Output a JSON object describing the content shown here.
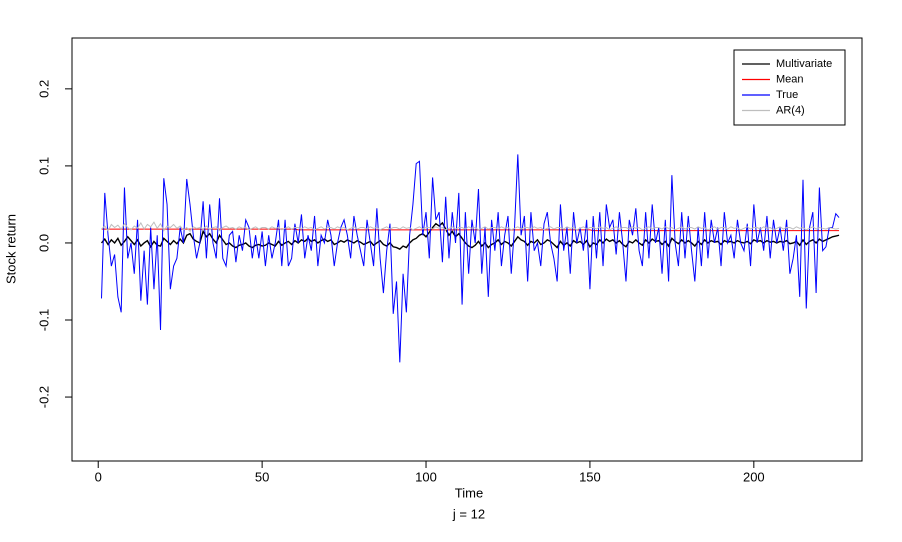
{
  "chart_data": {
    "type": "line",
    "xlabel": "Time",
    "subtitle": "j = 12",
    "ylabel": "Stock return",
    "xlim": [
      -8,
      233
    ],
    "ylim": [
      -0.283,
      0.266
    ],
    "xticks": [
      0,
      50,
      100,
      150,
      200
    ],
    "yticks": [
      -0.2,
      -0.1,
      {
        "value": 0,
        "label": "0.0"
      },
      0.1,
      0.2
    ],
    "legend": "topright",
    "x": [
      1,
      2,
      3,
      4,
      5,
      6,
      7,
      8,
      9,
      10,
      11,
      12,
      13,
      14,
      15,
      16,
      17,
      18,
      19,
      20,
      21,
      22,
      23,
      24,
      25,
      26,
      27,
      28,
      29,
      30,
      31,
      32,
      33,
      34,
      35,
      36,
      37,
      38,
      39,
      40,
      41,
      42,
      43,
      44,
      45,
      46,
      47,
      48,
      49,
      50,
      51,
      52,
      53,
      54,
      55,
      56,
      57,
      58,
      59,
      60,
      61,
      62,
      63,
      64,
      65,
      66,
      67,
      68,
      69,
      70,
      71,
      72,
      73,
      74,
      75,
      76,
      77,
      78,
      79,
      80,
      81,
      82,
      83,
      84,
      85,
      86,
      87,
      88,
      89,
      90,
      91,
      92,
      93,
      94,
      95,
      96,
      97,
      98,
      99,
      100,
      101,
      102,
      103,
      104,
      105,
      106,
      107,
      108,
      109,
      110,
      111,
      112,
      113,
      114,
      115,
      116,
      117,
      118,
      119,
      120,
      121,
      122,
      123,
      124,
      125,
      126,
      127,
      128,
      129,
      130,
      131,
      132,
      133,
      134,
      135,
      136,
      137,
      138,
      139,
      140,
      141,
      142,
      143,
      144,
      145,
      146,
      147,
      148,
      149,
      150,
      151,
      152,
      153,
      154,
      155,
      156,
      157,
      158,
      159,
      160,
      161,
      162,
      163,
      164,
      165,
      166,
      167,
      168,
      169,
      170,
      171,
      172,
      173,
      174,
      175,
      176,
      177,
      178,
      179,
      180,
      181,
      182,
      183,
      184,
      185,
      186,
      187,
      188,
      189,
      190,
      191,
      192,
      193,
      194,
      195,
      196,
      197,
      198,
      199,
      200,
      201,
      202,
      203,
      204,
      205,
      206,
      207,
      208,
      209,
      210,
      211,
      212,
      213,
      214,
      215,
      216,
      217,
      218,
      219,
      220,
      221,
      222,
      223,
      224,
      225,
      226
    ],
    "series": [
      {
        "name": "Multivariate",
        "color": "#000000",
        "values": [
          0.0,
          0.005,
          -0.002,
          0.004,
          0.0,
          0.006,
          -0.003,
          0.002,
          0.008,
          0.003,
          -0.002,
          0.004,
          -0.004,
          0.0,
          0.003,
          -0.005,
          0.002,
          -0.003,
          -0.004,
          0.006,
          0.002,
          -0.002,
          0.003,
          -0.001,
          0.005,
          0.0,
          0.01,
          0.012,
          0.005,
          0.002,
          0.0,
          0.015,
          0.008,
          0.012,
          0.005,
          0.0,
          0.01,
          0.004,
          -0.002,
          0.0,
          -0.004,
          -0.006,
          -0.003,
          -0.002,
          0.0,
          -0.004,
          -0.006,
          -0.003,
          -0.002,
          -0.004,
          -0.003,
          0.0,
          -0.002,
          -0.004,
          0.002,
          -0.003,
          0.0,
          0.002,
          -0.002,
          0.003,
          0.0,
          0.004,
          0.002,
          0.006,
          0.002,
          0.004,
          0.0,
          0.003,
          0.005,
          0.002,
          0.004,
          -0.002,
          0.0,
          0.003,
          0.001,
          0.004,
          0.002,
          0.0,
          0.003,
          0.001,
          -0.002,
          0.0,
          0.002,
          -0.003,
          0.0,
          0.003,
          -0.002,
          -0.004,
          0.0,
          -0.005,
          -0.006,
          -0.008,
          -0.004,
          -0.006,
          0.0,
          0.004,
          0.006,
          0.01,
          0.012,
          0.008,
          0.014,
          0.02,
          0.025,
          0.022,
          0.026,
          0.018,
          0.01,
          0.015,
          0.008,
          0.012,
          0.006,
          0.0,
          -0.004,
          -0.006,
          -0.003,
          0.002,
          -0.004,
          0.0,
          -0.006,
          -0.002,
          0.0,
          0.004,
          -0.002,
          0.002,
          0.0,
          -0.004,
          0.002,
          0.008,
          0.004,
          0.002,
          -0.003,
          0.002,
          0.0,
          0.004,
          -0.002,
          0.0,
          0.004,
          0.002,
          -0.002,
          -0.006,
          0.002,
          -0.003,
          0.0,
          -0.004,
          0.003,
          0.0,
          0.002,
          -0.002,
          0.003,
          -0.005,
          0.0,
          -0.002,
          0.004,
          0.0,
          0.005,
          0.002,
          0.004,
          0.0,
          0.003,
          -0.002,
          -0.005,
          0.002,
          0.0,
          0.004,
          0.0,
          -0.003,
          0.004,
          0.0,
          0.005,
          0.002,
          0.003,
          -0.002,
          0.002,
          -0.004,
          0.006,
          0.002,
          -0.001,
          0.004,
          0.0,
          0.003,
          0.0,
          -0.004,
          0.002,
          -0.002,
          0.004,
          0.0,
          0.003,
          0.001,
          0.002,
          -0.002,
          0.003,
          0.001,
          0.002,
          0.0,
          0.003,
          0.001,
          0.0,
          0.002,
          -0.001,
          0.004,
          0.002,
          0.003,
          0.0,
          0.003,
          0.001,
          0.002,
          0.0,
          0.002,
          0.001,
          0.003,
          -0.001,
          0.0,
          0.002,
          -0.003,
          0.004,
          -0.002,
          0.002,
          0.004,
          0.0,
          0.005,
          0.002,
          0.004,
          0.006,
          0.008,
          0.009,
          0.01
        ]
      },
      {
        "name": "Mean",
        "color": "#ff0000",
        "values": [
          0.018,
          0.018,
          0.018,
          0.018,
          0.018,
          0.018,
          0.018,
          0.018,
          0.018,
          0.018,
          0.018,
          0.018,
          0.018,
          0.018,
          0.018,
          0.018,
          0.018,
          0.018,
          0.018,
          0.018,
          0.018,
          0.018,
          0.018,
          0.018,
          0.018,
          0.018,
          0.018,
          0.018,
          0.018,
          0.018,
          0.018,
          0.018,
          0.018,
          0.018,
          0.018,
          0.018,
          0.018,
          0.018,
          0.018,
          0.018,
          0.018,
          0.018,
          0.018,
          0.018,
          0.018,
          0.018,
          0.018,
          0.018,
          0.018,
          0.018,
          0.018,
          0.018,
          0.018,
          0.018,
          0.018,
          0.018,
          0.018,
          0.018,
          0.018,
          0.018,
          0.017,
          0.017,
          0.017,
          0.017,
          0.017,
          0.017,
          0.017,
          0.017,
          0.017,
          0.017,
          0.017,
          0.017,
          0.017,
          0.017,
          0.017,
          0.017,
          0.017,
          0.017,
          0.017,
          0.017,
          0.017,
          0.017,
          0.017,
          0.017,
          0.017,
          0.017,
          0.017,
          0.017,
          0.017,
          0.017,
          0.017,
          0.017,
          0.017,
          0.017,
          0.017,
          0.017,
          0.017,
          0.017,
          0.017,
          0.017,
          0.017,
          0.017,
          0.017,
          0.017,
          0.017,
          0.017,
          0.017,
          0.017,
          0.017,
          0.017,
          0.017,
          0.017,
          0.017,
          0.017,
          0.017,
          0.017,
          0.017,
          0.017,
          0.017,
          0.017,
          0.017,
          0.017,
          0.017,
          0.017,
          0.017,
          0.017,
          0.017,
          0.017,
          0.017,
          0.017,
          0.017,
          0.017,
          0.017,
          0.017,
          0.017,
          0.017,
          0.017,
          0.017,
          0.017,
          0.017,
          0.017,
          0.017,
          0.017,
          0.017,
          0.017,
          0.017,
          0.017,
          0.017,
          0.017,
          0.017,
          0.016,
          0.016,
          0.016,
          0.016,
          0.016,
          0.016,
          0.016,
          0.016,
          0.016,
          0.016,
          0.016,
          0.016,
          0.016,
          0.016,
          0.016,
          0.016,
          0.016,
          0.016,
          0.016,
          0.016,
          0.016,
          0.016,
          0.016,
          0.016,
          0.016,
          0.016,
          0.016,
          0.016,
          0.016,
          0.016,
          0.016,
          0.016,
          0.016,
          0.016,
          0.016,
          0.016,
          0.016,
          0.016,
          0.016,
          0.016,
          0.016,
          0.016,
          0.016,
          0.016,
          0.016,
          0.016,
          0.016,
          0.016,
          0.016,
          0.016,
          0.016,
          0.016,
          0.016,
          0.016,
          0.016,
          0.016,
          0.016,
          0.016,
          0.016,
          0.016,
          0.016,
          0.016,
          0.016,
          0.016,
          0.016,
          0.016,
          0.016,
          0.016,
          0.016,
          0.016,
          0.016,
          0.016,
          0.016,
          0.016,
          0.016,
          0.016
        ]
      },
      {
        "name": "True",
        "color": "#0000ff",
        "values": [
          -0.072,
          0.065,
          0.01,
          -0.03,
          -0.015,
          -0.07,
          -0.09,
          0.072,
          -0.02,
          0.0,
          -0.04,
          0.03,
          -0.075,
          -0.01,
          -0.08,
          0.02,
          -0.06,
          0.01,
          -0.113,
          0.084,
          0.05,
          -0.06,
          -0.03,
          -0.02,
          0.02,
          0.0,
          0.083,
          0.05,
          0.01,
          -0.02,
          0.0,
          0.054,
          -0.02,
          0.05,
          0.0,
          -0.02,
          0.058,
          -0.02,
          -0.03,
          0.01,
          0.015,
          -0.025,
          0.01,
          -0.01,
          0.03,
          0.02,
          -0.02,
          0.01,
          -0.02,
          0.015,
          -0.03,
          0.01,
          -0.02,
          0.0,
          0.03,
          -0.03,
          0.03,
          -0.03,
          -0.02,
          0.025,
          0.0,
          0.037,
          -0.02,
          0.01,
          -0.01,
          0.035,
          -0.03,
          0.01,
          0.0,
          0.03,
          0.01,
          -0.03,
          0.0,
          0.02,
          0.03,
          0.01,
          -0.02,
          0.035,
          0.01,
          -0.01,
          -0.03,
          0.03,
          0.0,
          -0.03,
          0.045,
          -0.02,
          -0.065,
          -0.01,
          0.025,
          -0.092,
          -0.05,
          -0.155,
          -0.04,
          -0.09,
          0.01,
          0.05,
          0.103,
          0.106,
          0.01,
          0.04,
          -0.02,
          0.085,
          0.03,
          0.04,
          -0.025,
          0.06,
          -0.02,
          0.04,
          0.0,
          0.065,
          -0.08,
          0.04,
          -0.04,
          0.03,
          0.0,
          0.07,
          -0.04,
          0.02,
          -0.07,
          0.03,
          -0.01,
          0.04,
          -0.03,
          0.01,
          0.035,
          -0.04,
          0.02,
          0.115,
          0.01,
          0.035,
          -0.05,
          0.04,
          -0.01,
          0.0,
          -0.03,
          0.025,
          0.04,
          0.0,
          -0.02,
          -0.05,
          0.05,
          -0.01,
          0.02,
          -0.04,
          0.04,
          0.0,
          0.02,
          -0.01,
          0.03,
          -0.06,
          0.035,
          -0.02,
          0.04,
          -0.03,
          0.05,
          0.02,
          0.03,
          -0.015,
          0.04,
          0.0,
          -0.05,
          0.03,
          0.01,
          0.045,
          -0.01,
          -0.03,
          0.04,
          -0.02,
          0.05,
          0.0,
          0.02,
          -0.04,
          0.03,
          -0.05,
          0.088,
          0.0,
          -0.03,
          0.04,
          -0.02,
          0.035,
          -0.01,
          -0.05,
          0.02,
          -0.03,
          0.04,
          -0.02,
          0.03,
          0.0,
          0.02,
          -0.03,
          0.04,
          0.0,
          0.01,
          -0.02,
          0.03,
          0.0,
          -0.01,
          0.025,
          -0.03,
          0.05,
          0.0,
          0.02,
          -0.01,
          0.035,
          -0.02,
          0.03,
          0.0,
          0.02,
          -0.01,
          0.03,
          -0.04,
          -0.02,
          0.01,
          -0.07,
          0.082,
          -0.085,
          0.02,
          0.04,
          -0.065,
          0.072,
          -0.01,
          -0.005,
          0.02,
          0.02,
          0.038,
          0.033
        ]
      },
      {
        "name": "AR(4)",
        "color": "#bebebe",
        "values": [
          0.018,
          0.022,
          0.016,
          0.024,
          0.02,
          0.023,
          0.018,
          0.025,
          0.02,
          0.017,
          0.022,
          0.019,
          0.026,
          0.018,
          0.024,
          0.021,
          0.027,
          0.019,
          0.025,
          0.016,
          0.022,
          0.02,
          0.024,
          0.019,
          0.022,
          0.017,
          0.02,
          0.015,
          0.021,
          0.019,
          0.02,
          0.018,
          0.022,
          0.017,
          0.02,
          0.021,
          0.016,
          0.02,
          0.022,
          0.019,
          0.02,
          0.018,
          0.021,
          0.019,
          0.02,
          0.017,
          0.019,
          0.021,
          0.018,
          0.02,
          0.02,
          0.018,
          0.021,
          0.019,
          0.02,
          0.017,
          0.019,
          0.021,
          0.018,
          0.02,
          0.02,
          0.018,
          0.021,
          0.019,
          0.02,
          0.017,
          0.019,
          0.021,
          0.018,
          0.02,
          0.02,
          0.018,
          0.021,
          0.019,
          0.02,
          0.017,
          0.019,
          0.021,
          0.018,
          0.02,
          0.02,
          0.018,
          0.021,
          0.019,
          0.02,
          0.017,
          0.019,
          0.021,
          0.018,
          0.02,
          0.02,
          0.018,
          0.021,
          0.019,
          0.02,
          0.017,
          0.019,
          0.021,
          0.018,
          0.02,
          0.02,
          0.018,
          0.021,
          0.019,
          0.02,
          0.017,
          0.019,
          0.021,
          0.018,
          0.02,
          0.02,
          0.018,
          0.021,
          0.019,
          0.02,
          0.017,
          0.019,
          0.021,
          0.018,
          0.02,
          0.02,
          0.018,
          0.021,
          0.019,
          0.02,
          0.017,
          0.019,
          0.021,
          0.018,
          0.02,
          0.02,
          0.018,
          0.021,
          0.019,
          0.02,
          0.017,
          0.019,
          0.021,
          0.018,
          0.02,
          0.02,
          0.018,
          0.021,
          0.019,
          0.02,
          0.017,
          0.019,
          0.021,
          0.018,
          0.02,
          0.02,
          0.018,
          0.021,
          0.019,
          0.02,
          0.017,
          0.019,
          0.021,
          0.018,
          0.02,
          0.02,
          0.018,
          0.021,
          0.019,
          0.02,
          0.017,
          0.019,
          0.021,
          0.018,
          0.02,
          0.02,
          0.018,
          0.021,
          0.019,
          0.02,
          0.017,
          0.019,
          0.021,
          0.018,
          0.02,
          0.02,
          0.018,
          0.021,
          0.019,
          0.02,
          0.017,
          0.019,
          0.021,
          0.018,
          0.02,
          0.02,
          0.018,
          0.021,
          0.019,
          0.02,
          0.017,
          0.019,
          0.021,
          0.018,
          0.02,
          0.02,
          0.018,
          0.021,
          0.019,
          0.02,
          0.017,
          0.019,
          0.021,
          0.018,
          0.02,
          0.02,
          0.018,
          0.021,
          0.019,
          0.02,
          0.017,
          0.019,
          0.021,
          0.018,
          0.02,
          0.019,
          0.018,
          0.02,
          0.019,
          0.018,
          0.019
        ]
      }
    ]
  }
}
